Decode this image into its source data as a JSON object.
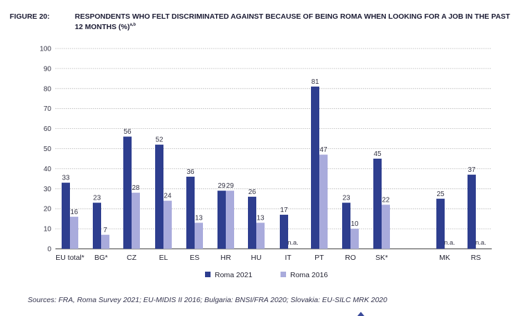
{
  "figure": {
    "number": "FIGURE 20:",
    "title": "RESPONDENTS WHO FELT DISCRIMINATED AGAINST BECAUSE OF BEING ROMA WHEN LOOKING FOR A JOB IN THE PAST 12 MONTHS (%)",
    "footnote_marks": "a,b"
  },
  "source": "Sources: FRA, Roma Survey 2021; EU-MIDIS II 2016; Bulgaria: BNSI/FRA 2020; Slovakia: EU-SILC MRK 2020",
  "colors": {
    "roma2021": "#2e3e8f",
    "roma2016": "#a9abdc",
    "grid": "#b0b0b0",
    "axis": "#333333"
  },
  "chart_data": {
    "type": "bar",
    "ylim": [
      0,
      100
    ],
    "yticks": [
      0,
      10,
      20,
      30,
      40,
      50,
      60,
      70,
      80,
      90,
      100
    ],
    "grid": true,
    "legend_position": "bottom",
    "categories": [
      "EU total*",
      "BG*",
      "CZ",
      "EL",
      "ES",
      "HR",
      "HU",
      "IT",
      "PT",
      "RO",
      "SK*",
      "MK",
      "RS"
    ],
    "series": [
      {
        "name": "Roma 2021",
        "values": [
          33,
          23,
          56,
          52,
          36,
          29,
          26,
          17,
          81,
          23,
          45,
          25,
          37
        ]
      },
      {
        "name": "Roma 2016",
        "values": [
          16,
          7,
          28,
          24,
          13,
          29,
          13,
          null,
          47,
          10,
          22,
          null,
          null
        ]
      }
    ],
    "missing_label": "n.a."
  }
}
